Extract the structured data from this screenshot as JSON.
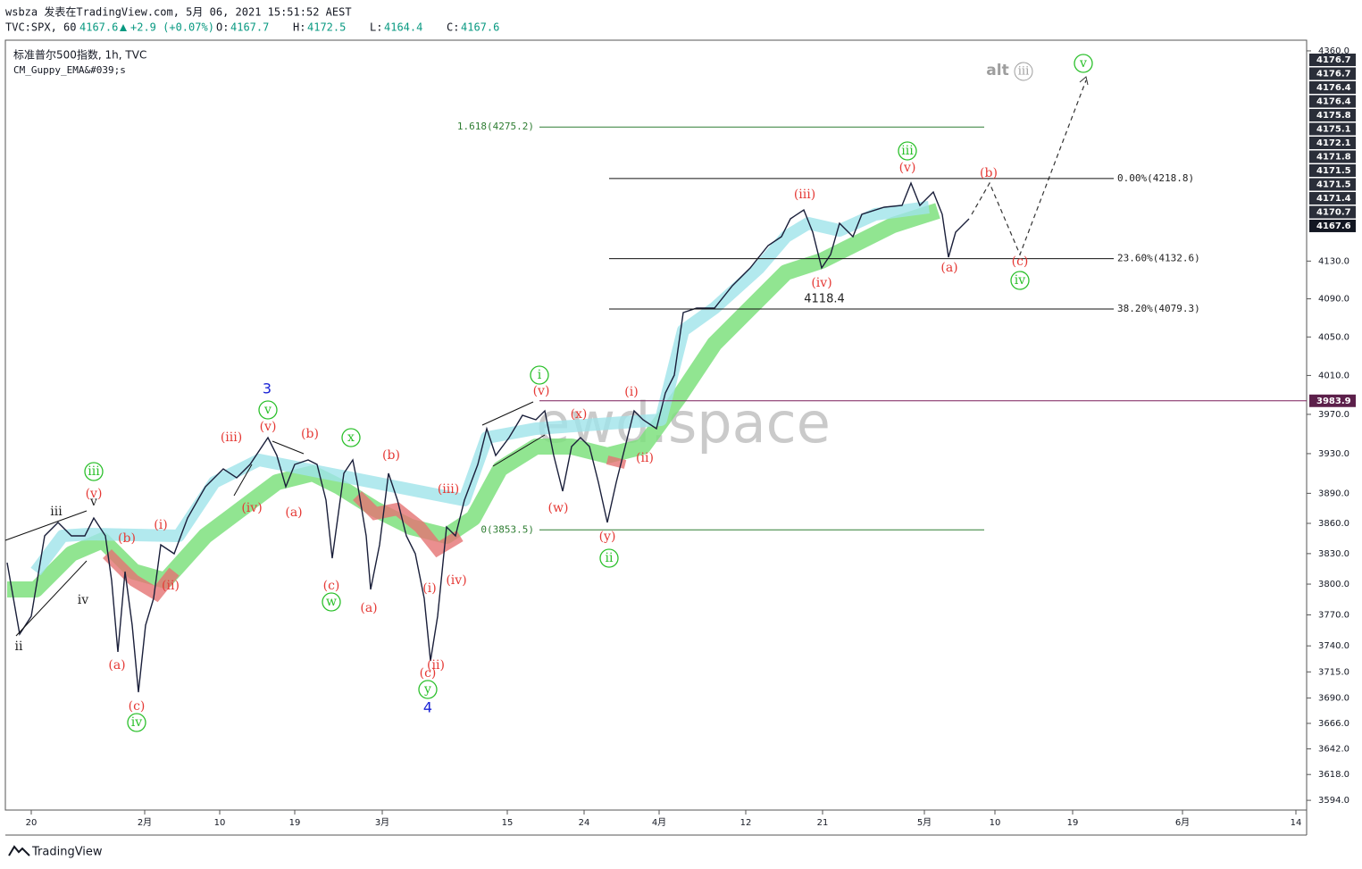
{
  "header": {
    "publisher": "wsbza 发表在TradingView.com, 5月 06, 2021 15:51:52 AEST",
    "symbol": "TVC:SPX, 60",
    "last": "4167.6",
    "change": "+2.9 (+0.07%)",
    "ohlc": [
      {
        "label": "O:",
        "value": "4167.7"
      },
      {
        "label": "H:",
        "value": "4172.5"
      },
      {
        "label": "L:",
        "value": "4164.4"
      },
      {
        "label": "C:",
        "value": "4167.6"
      }
    ]
  },
  "legend": {
    "title": "标准普尔500指数, 1h, TVC",
    "indicator": "CM_Guppy_EMA&#039;s"
  },
  "price_axis": {
    "ylim": [
      3585,
      4372
    ],
    "log_scale": true,
    "ticks": [
      {
        "value": 4360,
        "label": "4360.0"
      },
      {
        "value": 4130,
        "label": "4130.0"
      },
      {
        "value": 4090,
        "label": "4090.0"
      },
      {
        "value": 4050,
        "label": "4050.0"
      },
      {
        "value": 4010,
        "label": "4010.0"
      },
      {
        "value": 3970,
        "label": "3970.0"
      },
      {
        "value": 3930,
        "label": "3930.0"
      },
      {
        "value": 3890,
        "label": "3890.0"
      },
      {
        "value": 3860,
        "label": "3860.0"
      },
      {
        "value": 3830,
        "label": "3830.0"
      },
      {
        "value": 3800,
        "label": "3800.0"
      },
      {
        "value": 3770,
        "label": "3770.0"
      },
      {
        "value": 3740,
        "label": "3740.0"
      },
      {
        "value": 3715,
        "label": "3715.0"
      },
      {
        "value": 3690,
        "label": "3690.0"
      },
      {
        "value": 3666,
        "label": "3666.0"
      },
      {
        "value": 3642,
        "label": "3642.0"
      },
      {
        "value": 3618,
        "label": "3618.0"
      },
      {
        "value": 3594,
        "label": "3594.0"
      }
    ]
  },
  "price_labels": {
    "stack": [
      "4176.7",
      "4176.7",
      "4176.4",
      "4176.4",
      "4175.8",
      "4175.1",
      "4172.1",
      "4171.8",
      "4171.5",
      "4171.5",
      "4171.4",
      "4170.7"
    ],
    "last": 4167.6,
    "level": 3983.9
  },
  "fib_levels": [
    {
      "value": 4275.2,
      "label": "1.618(4275.2)"
    },
    {
      "value": 3853.5,
      "label": "0(3853.5)"
    },
    {
      "value": 4218.8,
      "label": "0.00%(4218.8)"
    },
    {
      "value": 4132.6,
      "label": "23.60%(4132.6)"
    },
    {
      "value": 4079.3,
      "label": "38.20%(4079.3)"
    }
  ],
  "x_axis": [
    "20",
    "2月",
    "10",
    "19",
    "3月",
    "15",
    "24",
    "4月",
    "12",
    "21",
    "5月",
    "10",
    "19",
    "6月",
    "14"
  ],
  "wave_labels": [
    "iii",
    "v",
    "iv",
    "ii",
    "(v)",
    "(b)",
    "(a)",
    "(c)",
    "(i)",
    "(ii)",
    "(iii)",
    "(iv)",
    "(v)",
    "(b)",
    "(a)",
    "(c)",
    "(b)",
    "(a)",
    "(iii)",
    "(iv)",
    "(i)",
    "(c)",
    "(ii)",
    "(v)",
    "(x)",
    "(w)",
    "(y)",
    "(i)",
    "(ii)",
    "(iii)",
    "(iv)",
    "(v)",
    "(b)",
    "(a)",
    "(c)",
    "iii",
    "iv",
    "v",
    "x",
    "w",
    "y",
    "i",
    "ii",
    "iii",
    "iv",
    "v",
    "3",
    "4"
  ],
  "annotations": {
    "level": "4118.4",
    "alt": "alt",
    "alt_wave": "iii",
    "watermark": "ewd.space"
  },
  "footer": "TradingView"
}
